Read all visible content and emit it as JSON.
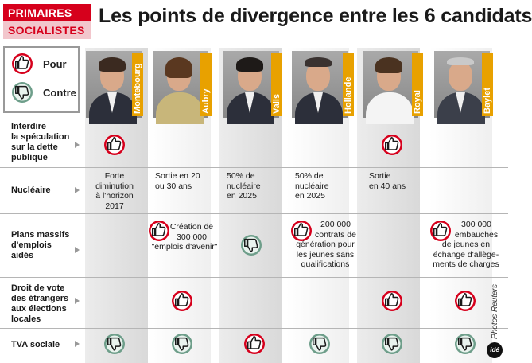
{
  "header": {
    "badge_line1": "PRIMAIRES",
    "badge_line2": "SOCIALISTES",
    "title": "Les points de divergence entre les 6 candidats"
  },
  "legend": {
    "pour": "Pour",
    "contre": "Contre"
  },
  "colors": {
    "pour": "#d6001c",
    "contre": "#6e9e8a",
    "name_tag": "#e8a100"
  },
  "candidates": [
    {
      "name": "Montebourg"
    },
    {
      "name": "Aubry"
    },
    {
      "name": "Valls"
    },
    {
      "name": "Hollande"
    },
    {
      "name": "Royal"
    },
    {
      "name": "Baylet"
    }
  ],
  "rows": [
    {
      "label": [
        "Interdire",
        "la spéculation",
        "sur la dette",
        "publique"
      ]
    },
    {
      "label": [
        "Nucléaire"
      ]
    },
    {
      "label": [
        "Plans massifs",
        "d'emplois",
        "aidés"
      ]
    },
    {
      "label": [
        "Droit de vote",
        "des étrangers",
        "aux élections",
        "locales"
      ]
    },
    {
      "label": [
        "TVA sociale"
      ]
    }
  ],
  "cells": {
    "speculation": {
      "montebourg": "pour",
      "royal": "pour"
    },
    "nucleaire": {
      "montebourg": [
        "Forte",
        "diminution",
        "à l'horizon",
        "2017"
      ],
      "aubry": [
        "Sortie en 20",
        "ou 30 ans"
      ],
      "valls": [
        "50% de",
        "nucléaire",
        "en 2025"
      ],
      "hollande": [
        "50% de",
        "nucléaire",
        "en 2025"
      ],
      "royal": [
        "Sortie",
        "en 40 ans"
      ]
    },
    "emplois": {
      "aubry": {
        "vote": "pour",
        "text": [
          "Création de",
          "300 000",
          "\"emplois d'avenir\""
        ]
      },
      "valls": {
        "vote": "contre"
      },
      "hollande": {
        "vote": "pour",
        "text": [
          "200 000",
          "contrats de",
          "génération pour",
          "les jeunes sans",
          "qualifications"
        ]
      },
      "baylet": {
        "vote": "pour",
        "text": [
          "300 000",
          "embauches",
          "de jeunes en",
          "échange d'allège-",
          "ments de charges"
        ]
      }
    },
    "vote_etrangers": {
      "aubry": "pour",
      "royal": "pour",
      "baylet": "pour"
    },
    "tva_sociale": {
      "montebourg": "contre",
      "aubry": "contre",
      "valls": "pour",
      "hollande": "contre",
      "royal": "contre",
      "baylet": "contre"
    }
  },
  "credit": "Photos Reuters",
  "logo": "idé"
}
